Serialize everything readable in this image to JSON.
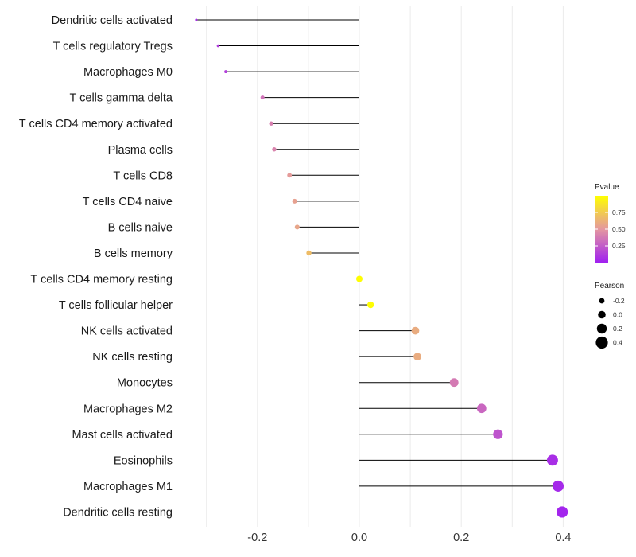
{
  "chart_data": {
    "type": "lollipop",
    "categories": [
      "Dendritic cells activated",
      "T cells regulatory  Tregs ",
      "Macrophages M0",
      "T cells gamma delta",
      "T cells CD4 memory activated",
      "Plasma cells",
      "T cells CD8",
      "T cells CD4 naive",
      "B cells naive",
      "B cells memory",
      "T cells CD4 memory resting",
      "T cells follicular helper",
      "NK cells activated",
      "NK cells resting",
      "Monocytes",
      "Macrophages M2",
      "Mast cells activated",
      "Eosinophils",
      "Macrophages M1",
      "Dendritic cells resting"
    ],
    "values": [
      -0.32,
      -0.277,
      -0.262,
      -0.19,
      -0.173,
      -0.167,
      -0.137,
      -0.127,
      -0.122,
      -0.099,
      0.0,
      0.022,
      0.11,
      0.114,
      0.186,
      0.24,
      0.272,
      0.379,
      0.39,
      0.398
    ],
    "pvalues": [
      0.05,
      0.12,
      0.13,
      0.35,
      0.4,
      0.42,
      0.52,
      0.55,
      0.57,
      0.68,
      0.99,
      0.99,
      0.6,
      0.6,
      0.38,
      0.3,
      0.22,
      0.06,
      0.04,
      0.02
    ],
    "xlabel": "",
    "ylabel": "",
    "xlim": [
      -0.32,
      0.4
    ],
    "xticks": [
      -0.2,
      0.0,
      0.2,
      0.4
    ],
    "xtick_labels": [
      "-0.2",
      "0.0",
      "0.2",
      "0.4"
    ],
    "grid": true,
    "color_legend": {
      "title": "Pvalue",
      "ticks": [
        0.25,
        0.5,
        0.75
      ],
      "tick_labels": [
        "0.25",
        "0.50",
        "0.75"
      ],
      "low_color": "#a020f0",
      "high_color": "#ffff00",
      "range": [
        0.0,
        1.0
      ]
    },
    "size_legend": {
      "title": "Pearson",
      "values": [
        -0.2,
        0.0,
        0.2,
        0.4
      ],
      "labels": [
        "-0.2",
        "0.0",
        "0.2",
        "0.4"
      ]
    }
  }
}
